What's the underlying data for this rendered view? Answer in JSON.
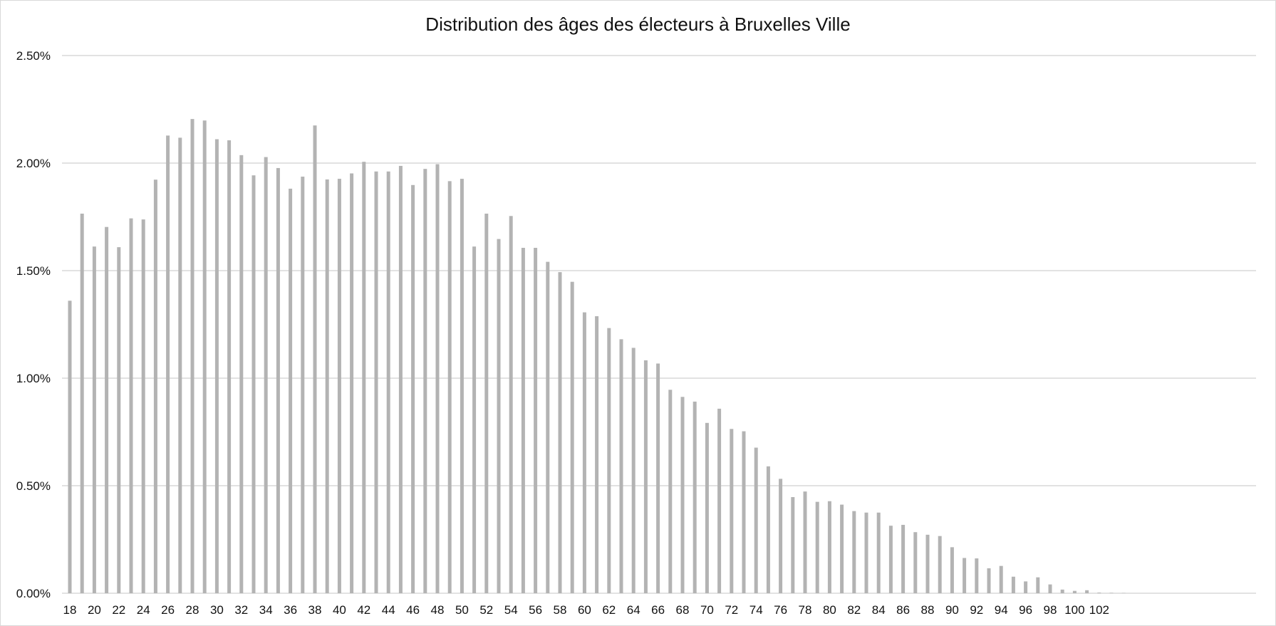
{
  "chart_data": {
    "type": "bar",
    "title": "Distribution des âges des électeurs à Bruxelles Ville",
    "xlabel": "",
    "ylabel": "",
    "ylim": [
      0,
      0.025
    ],
    "y_ticks": [
      "0.00%",
      "0.50%",
      "1.00%",
      "1.50%",
      "2.00%",
      "2.50%"
    ],
    "y_tick_values": [
      0,
      0.005,
      0.01,
      0.015,
      0.02,
      0.025
    ],
    "grid": true,
    "legend": "none",
    "bar_color": "#b3b3b3",
    "grid_color": "#d9d9d9",
    "categories": [
      18,
      19,
      20,
      21,
      22,
      23,
      24,
      25,
      26,
      27,
      28,
      29,
      30,
      31,
      32,
      33,
      34,
      35,
      36,
      37,
      38,
      39,
      40,
      41,
      42,
      43,
      44,
      45,
      46,
      47,
      48,
      49,
      50,
      51,
      52,
      53,
      54,
      55,
      56,
      57,
      58,
      59,
      60,
      61,
      62,
      63,
      64,
      65,
      66,
      67,
      68,
      69,
      70,
      71,
      72,
      73,
      74,
      75,
      76,
      77,
      78,
      79,
      80,
      81,
      82,
      83,
      84,
      85,
      86,
      87,
      88,
      89,
      90,
      91,
      92,
      93,
      94,
      95,
      96,
      97,
      98,
      99,
      100,
      101,
      102,
      103,
      104,
      105,
      106,
      107,
      108,
      109,
      110,
      111,
      112,
      113,
      114,
      115,
      116
    ],
    "tick_labels": [
      "18",
      "20",
      "22",
      "24",
      "26",
      "28",
      "30",
      "32",
      "34",
      "36",
      "38",
      "40",
      "42",
      "44",
      "46",
      "48",
      "50",
      "52",
      "54",
      "56",
      "58",
      "60",
      "62",
      "64",
      "66",
      "68",
      "70",
      "72",
      "74",
      "76",
      "78",
      "80",
      "82",
      "84",
      "86",
      "88",
      "90",
      "92",
      "94",
      "96",
      "98",
      "100",
      "102"
    ],
    "values": [
      0.0136,
      0.01765,
      0.01612,
      0.01703,
      0.01609,
      0.01743,
      0.01738,
      0.01923,
      0.02128,
      0.02118,
      0.02205,
      0.02198,
      0.02111,
      0.02106,
      0.02037,
      0.01943,
      0.02028,
      0.01977,
      0.01881,
      0.01937,
      0.02175,
      0.01924,
      0.01927,
      0.01952,
      0.02006,
      0.01961,
      0.01961,
      0.01987,
      0.01898,
      0.01973,
      0.01995,
      0.01916,
      0.01927,
      0.01612,
      0.01765,
      0.01647,
      0.01754,
      0.01606,
      0.01606,
      0.01541,
      0.01493,
      0.01448,
      0.01306,
      0.01288,
      0.01233,
      0.01181,
      0.01141,
      0.01083,
      0.01068,
      0.00946,
      0.00913,
      0.00891,
      0.00792,
      0.00858,
      0.00764,
      0.00753,
      0.00677,
      0.0059,
      0.00532,
      0.00447,
      0.00473,
      0.00425,
      0.00428,
      0.00412,
      0.00382,
      0.00375,
      0.00375,
      0.00314,
      0.00318,
      0.00284,
      0.00272,
      0.00266,
      0.00214,
      0.00164,
      0.00162,
      0.00116,
      0.00127,
      0.00077,
      0.00055,
      0.00074,
      0.00041,
      0.00017,
      0.00011,
      0.00014,
      3e-05,
      2e-05,
      1e-05,
      0,
      0,
      0,
      0,
      0,
      0,
      0,
      0,
      0,
      0,
      0,
      0
    ]
  }
}
